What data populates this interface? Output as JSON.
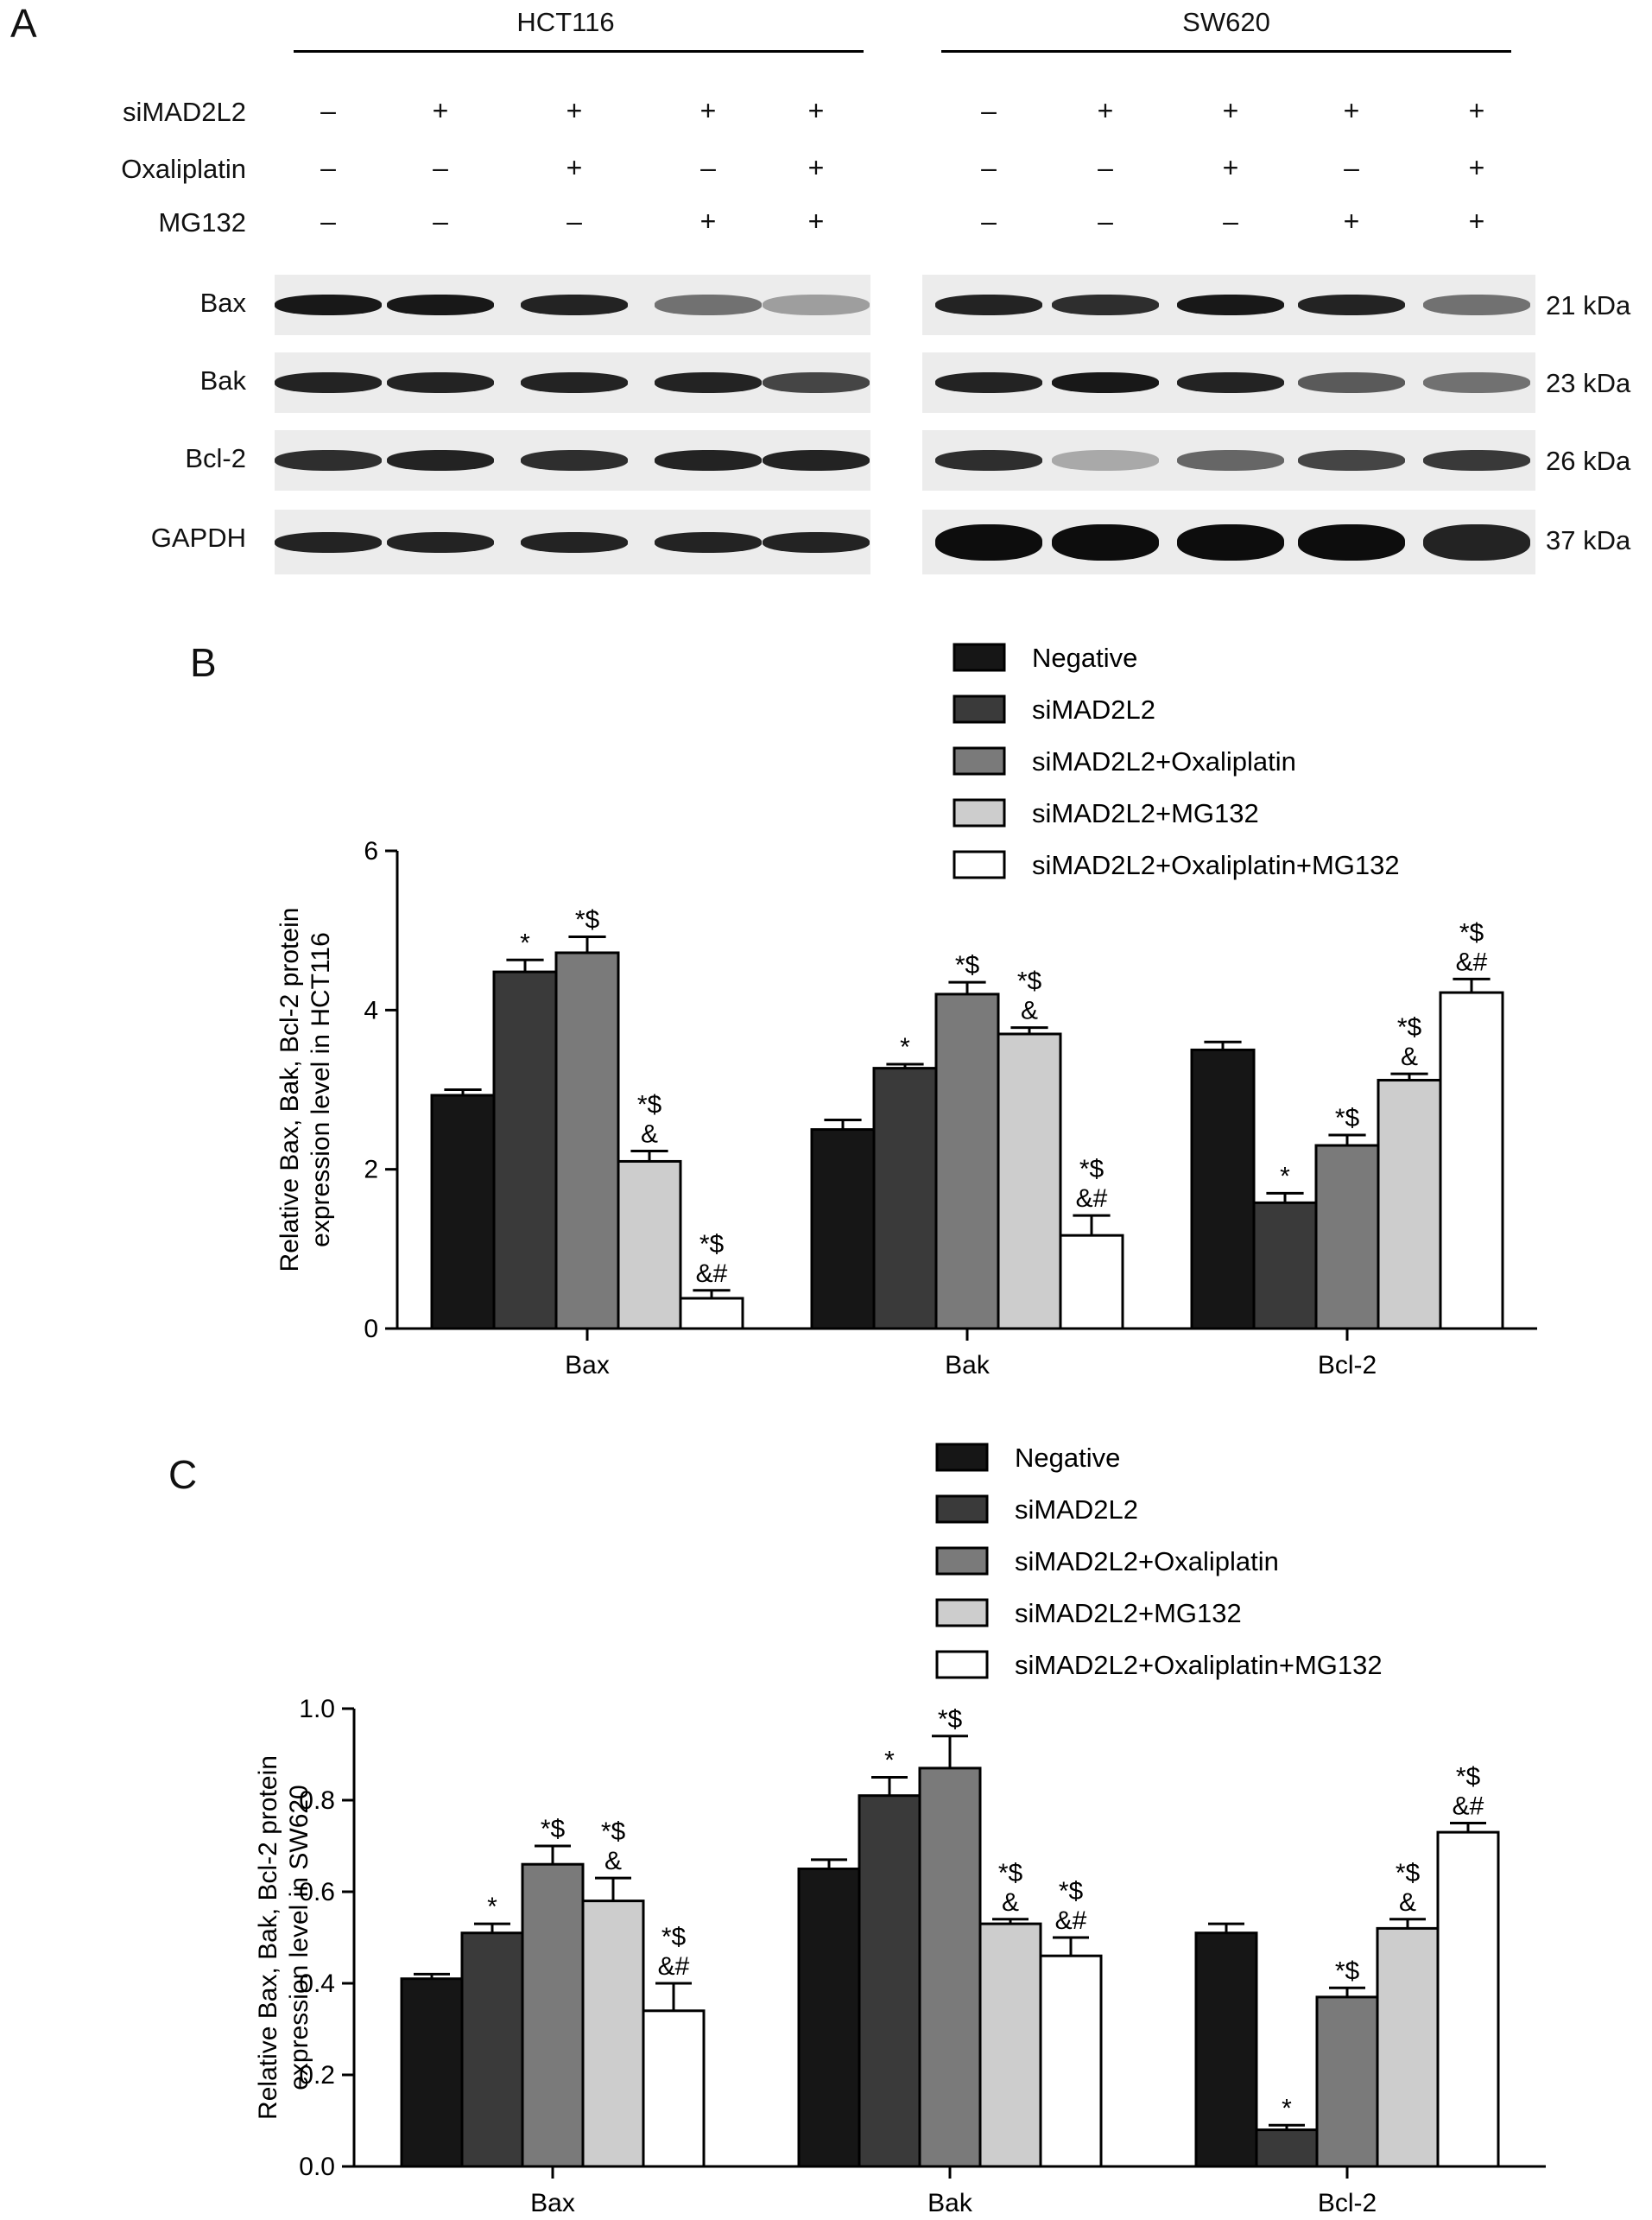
{
  "panels": {
    "a_label": "A",
    "b_label": "B",
    "c_label": "C"
  },
  "blot": {
    "cell_lines": [
      "HCT116",
      "SW620"
    ],
    "treatments": [
      {
        "name": "siMAD2L2",
        "hct116": [
          "–",
          "+",
          "+",
          "+",
          "+"
        ],
        "sw620": [
          "–",
          "+",
          "+",
          "+",
          "+"
        ]
      },
      {
        "name": "Oxaliplatin",
        "hct116": [
          "–",
          "–",
          "+",
          "–",
          "+"
        ],
        "sw620": [
          "–",
          "–",
          "+",
          "–",
          "+"
        ]
      },
      {
        "name": "MG132",
        "hct116": [
          "–",
          "–",
          "–",
          "+",
          "+"
        ],
        "sw620": [
          "–",
          "–",
          "–",
          "+",
          "+"
        ]
      }
    ],
    "proteins": [
      {
        "name": "Bax",
        "kda": "21 kDa",
        "hct116_intensity": [
          0.95,
          0.95,
          0.9,
          0.55,
          0.35
        ],
        "sw620_intensity": [
          0.9,
          0.85,
          0.95,
          0.9,
          0.55
        ]
      },
      {
        "name": "Bak",
        "kda": "23 kDa",
        "hct116_intensity": [
          0.9,
          0.9,
          0.9,
          0.9,
          0.75
        ],
        "sw620_intensity": [
          0.9,
          0.95,
          0.9,
          0.65,
          0.55
        ]
      },
      {
        "name": "Bcl-2",
        "kda": "26 kDa",
        "hct116_intensity": [
          0.85,
          0.9,
          0.85,
          0.9,
          0.9
        ],
        "sw620_intensity": [
          0.85,
          0.3,
          0.6,
          0.75,
          0.8
        ]
      },
      {
        "name": "GAPDH",
        "kda": "37 kDa",
        "hct116_intensity": [
          0.9,
          0.9,
          0.9,
          0.9,
          0.9
        ],
        "sw620_intensity": [
          1.0,
          1.0,
          1.0,
          1.0,
          0.9
        ]
      }
    ]
  },
  "colors": {
    "series": [
      "#161616",
      "#3a3a3a",
      "#7a7a7a",
      "#cdcdcd",
      "#ffffff"
    ],
    "band": "#0d0d0d",
    "axis": "#000000"
  },
  "chart_data": [
    {
      "type": "bar",
      "title": "",
      "ylabel_line1": "Relative Bax, Bak, Bcl-2 protein",
      "ylabel_line2": "expression level in HCT116",
      "ylim": [
        0,
        6
      ],
      "yticks": [
        "0",
        "2",
        "4",
        "6"
      ],
      "ytick_values": [
        0,
        2,
        4,
        6
      ],
      "categories": [
        "Bax",
        "Bak",
        "Bcl-2"
      ],
      "series": [
        {
          "name": "Negative",
          "values": [
            2.93,
            2.5,
            3.5
          ],
          "errors": [
            0.07,
            0.12,
            0.1
          ]
        },
        {
          "name": "siMAD2L2",
          "values": [
            4.48,
            3.27,
            1.58
          ],
          "errors": [
            0.15,
            0.05,
            0.12
          ]
        },
        {
          "name": "siMAD2L2+Oxaliplatin",
          "values": [
            4.72,
            4.2,
            2.3
          ],
          "errors": [
            0.2,
            0.15,
            0.13
          ]
        },
        {
          "name": "siMAD2L2+MG132",
          "values": [
            2.1,
            3.7,
            3.12
          ],
          "errors": [
            0.13,
            0.08,
            0.08
          ]
        },
        {
          "name": "siMAD2L2+Oxaliplatin+MG132",
          "values": [
            0.38,
            1.17,
            4.22
          ],
          "errors": [
            0.1,
            0.25,
            0.17
          ]
        }
      ],
      "annotations": [
        [
          "",
          "*",
          "*$",
          "*$|&",
          "*$|&#"
        ],
        [
          "",
          "*",
          "*$",
          "*$|&",
          "*$|&#"
        ],
        [
          "",
          "*",
          "*$",
          "*$|&",
          "*$|&#"
        ]
      ],
      "legend_position": "top-right"
    },
    {
      "type": "bar",
      "title": "",
      "ylabel_line1": "Relative Bax, Bak, Bcl-2 protein",
      "ylabel_line2": "expression level in SW620",
      "ylim": [
        0,
        1.0
      ],
      "yticks": [
        "0.0",
        "0.2",
        "0.4",
        "0.6",
        "0.8",
        "1.0"
      ],
      "ytick_values": [
        0,
        0.2,
        0.4,
        0.6,
        0.8,
        1.0
      ],
      "categories": [
        "Bax",
        "Bak",
        "Bcl-2"
      ],
      "series": [
        {
          "name": "Negative",
          "values": [
            0.41,
            0.65,
            0.51
          ],
          "errors": [
            0.01,
            0.02,
            0.02
          ]
        },
        {
          "name": "siMAD2L2",
          "values": [
            0.51,
            0.81,
            0.08
          ],
          "errors": [
            0.02,
            0.04,
            0.01
          ]
        },
        {
          "name": "siMAD2L2+Oxaliplatin",
          "values": [
            0.66,
            0.87,
            0.37
          ],
          "errors": [
            0.04,
            0.07,
            0.02
          ]
        },
        {
          "name": "siMAD2L2+MG132",
          "values": [
            0.58,
            0.53,
            0.52
          ],
          "errors": [
            0.05,
            0.01,
            0.02
          ]
        },
        {
          "name": "siMAD2L2+Oxaliplatin+MG132",
          "values": [
            0.34,
            0.46,
            0.73
          ],
          "errors": [
            0.06,
            0.04,
            0.02
          ]
        }
      ],
      "annotations": [
        [
          "",
          "*",
          "*$",
          "*$|&",
          "*$|&#"
        ],
        [
          "",
          "*",
          "*$",
          "*$|&",
          "*$|&#"
        ],
        [
          "",
          "*",
          "*$",
          "*$|&",
          "*$|&#"
        ]
      ],
      "legend_position": "top-right"
    }
  ]
}
